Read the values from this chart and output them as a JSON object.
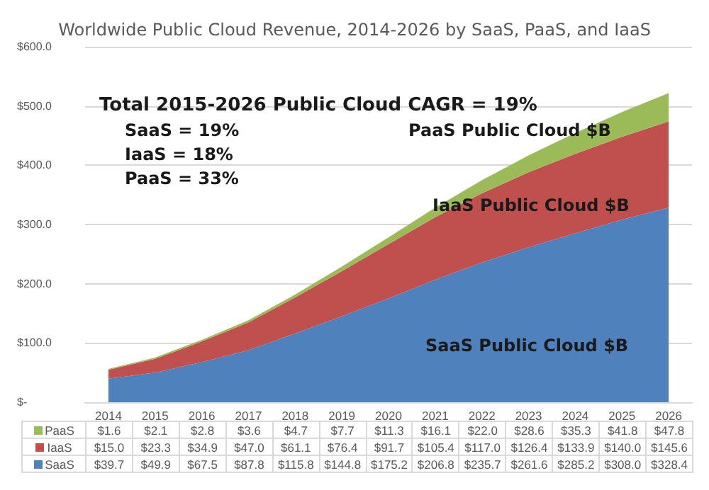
{
  "chart_data": {
    "type": "area",
    "stacked": true,
    "title": "Worldwide Public Cloud Revenue, 2014-2026 by SaaS, PaaS, and IaaS",
    "categories": [
      "2014",
      "2015",
      "2016",
      "2017",
      "2018",
      "2019",
      "2020",
      "2021",
      "2022",
      "2023",
      "2024",
      "2025",
      "2026"
    ],
    "series": [
      {
        "name": "SaaS",
        "color": "#4f81bd",
        "values": [
          39.7,
          49.9,
          67.5,
          87.8,
          115.8,
          144.8,
          175.2,
          206.8,
          235.7,
          261.6,
          285.2,
          308.0,
          328.4
        ],
        "value_labels": [
          "$39.7",
          "$49.9",
          "$67.5",
          "$87.8",
          "$115.8",
          "$144.8",
          "$175.2",
          "$206.8",
          "$235.7",
          "$261.6",
          "$285.2",
          "$308.0",
          "$328.4"
        ]
      },
      {
        "name": "IaaS",
        "color": "#c0504d",
        "values": [
          15.0,
          23.3,
          34.9,
          47.0,
          61.1,
          76.4,
          91.7,
          105.4,
          117.0,
          126.4,
          133.9,
          140.0,
          145.6
        ],
        "value_labels": [
          "$15.0",
          "$23.3",
          "$34.9",
          "$47.0",
          "$61.1",
          "$76.4",
          "$91.7",
          "$105.4",
          "$117.0",
          "$126.4",
          "$133.9",
          "$140.0",
          "$145.6"
        ]
      },
      {
        "name": "PaaS",
        "color": "#9bbb59",
        "values": [
          1.6,
          2.1,
          2.8,
          3.6,
          4.7,
          7.7,
          11.3,
          16.1,
          22.0,
          28.6,
          35.3,
          41.8,
          47.8
        ],
        "value_labels": [
          "$1.6",
          "$2.1",
          "$2.8",
          "$3.6",
          "$4.7",
          "$7.7",
          "$11.3",
          "$16.1",
          "$22.0",
          "$28.6",
          "$35.3",
          "$41.8",
          "$47.8"
        ]
      }
    ],
    "ylim": [
      0,
      600
    ],
    "yticks": [
      {
        "value": 0,
        "label": "$-"
      },
      {
        "value": 100,
        "label": "$100.0"
      },
      {
        "value": 200,
        "label": "$200.0"
      },
      {
        "value": 300,
        "label": "$300.0"
      },
      {
        "value": 400,
        "label": "$400.0"
      },
      {
        "value": 500,
        "label": "$500.0"
      },
      {
        "value": 600,
        "label": "$600.0"
      }
    ],
    "grid": "y",
    "legend": "bottom",
    "annotations": [
      "Total 2015-2026 Public Cloud CAGR = 19%",
      "SaaS = 19%",
      "IaaS = 18%",
      "PaaS = 33%",
      "PaaS Public Cloud $B",
      "IaaS Public Cloud $B",
      "SaaS Public Cloud $B"
    ]
  }
}
